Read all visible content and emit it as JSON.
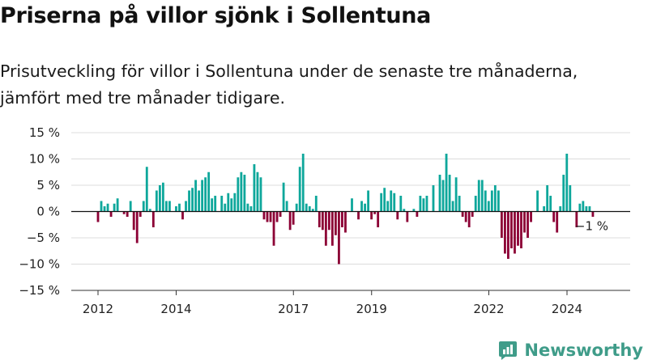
{
  "title": "Priserna på villor sjönk i Sollentuna",
  "subtitle": "Prisutveckling för villor i Sollentuna under de senaste tre månaderna, jämfört med tre månader tidigare.",
  "brand": {
    "name": "Newsworthy",
    "icon": "newsworthy-logo-icon",
    "color": "#3f9c89"
  },
  "chart_data": {
    "type": "bar",
    "y_unit": "%",
    "ylim": [
      -15,
      15
    ],
    "yticks": [
      15,
      10,
      5,
      0,
      -5,
      -10,
      -15
    ],
    "ytick_labels": [
      "15 %",
      "10 %",
      "5 %",
      "0 %",
      "−5 %",
      "−10 %",
      "−15 %"
    ],
    "xticks": [
      2012,
      2014,
      2017,
      2019,
      2022,
      2024
    ],
    "xtick_labels": [
      "2012",
      "2014",
      "2017",
      "2019",
      "2022",
      "2024"
    ],
    "grid": true,
    "colors": {
      "positive": "#0ea79b",
      "negative": "#8c0035"
    },
    "annotation": {
      "text": "−1 %",
      "target": "last"
    },
    "series": [
      {
        "start": 2012.0,
        "step": 0.0833,
        "values": [
          -2,
          2,
          1,
          1.5,
          -1,
          1.5,
          2.5,
          0,
          -0.5,
          -1,
          2,
          -3.5,
          -6,
          -1,
          2,
          8.5,
          0.5,
          -3,
          4,
          5,
          5.5,
          2,
          2,
          0,
          1,
          1.5,
          -1.5,
          2,
          4,
          4.5,
          6,
          4,
          6,
          6.5,
          7.5,
          2.5,
          3,
          0,
          3,
          1.5,
          3.5,
          2.5,
          3.5,
          6.5,
          7.5,
          7,
          1.5,
          1,
          9,
          7.5,
          6.5,
          -1.5,
          -2,
          -2,
          -6.5,
          -2,
          -1,
          5.5,
          2,
          -3.5,
          -2.5,
          1.5,
          8.5,
          11,
          1.5,
          1,
          0.5,
          3,
          -3,
          -3.5,
          -6.5,
          -3.5,
          -6.5,
          -4.5,
          -10,
          -3,
          -4,
          0,
          2.5,
          0,
          -1.5,
          2,
          1.5,
          4,
          -1.5,
          -0.5,
          -3,
          3.5,
          4.5,
          2,
          4,
          3.5,
          -1.5,
          3,
          0.5,
          -2,
          0,
          0.5,
          -1,
          3,
          2.5,
          3,
          0,
          5,
          0,
          7,
          6,
          11,
          7,
          2,
          6.5,
          3,
          -1,
          -2,
          -3,
          -1,
          3,
          6,
          6,
          4,
          2,
          4,
          5,
          4,
          -5,
          -8,
          -9,
          -7,
          -8,
          -6.5,
          -7,
          -4,
          -5,
          -2,
          0,
          4,
          0,
          1,
          5,
          3,
          -2,
          -4,
          1,
          7,
          11,
          5,
          0,
          -3,
          1.5,
          2,
          1,
          1,
          -1
        ]
      }
    ]
  }
}
